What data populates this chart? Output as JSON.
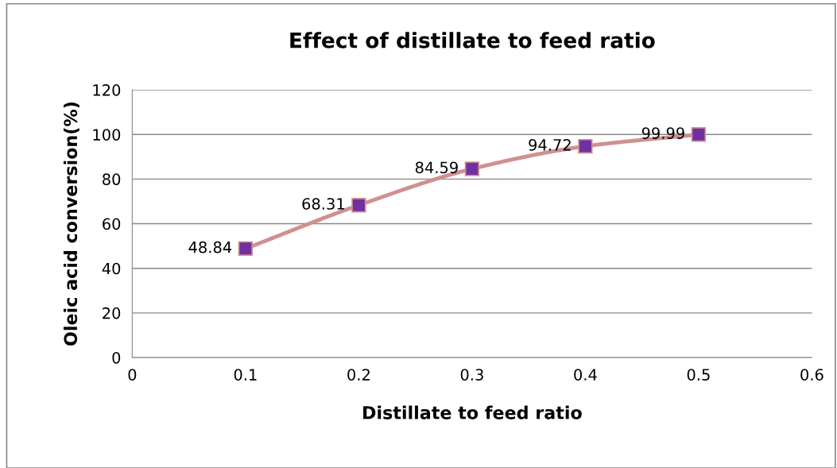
{
  "chart_data": {
    "type": "line",
    "title": "Effect of distillate to feed ratio",
    "xlabel": "Distillate to feed ratio",
    "ylabel": "Oleic acid conversion(%)",
    "x": [
      0.1,
      0.2,
      0.3,
      0.4,
      0.5
    ],
    "series": [
      {
        "color": "#d09090",
        "colors": [
          "#7030a0",
          "#7030a0",
          "#7030a0",
          "#7030a0",
          "#7030a0"
        ],
        "values": [
          48.84,
          68.31,
          84.59,
          94.72,
          99.99
        ]
      }
    ],
    "xlim": [
      0,
      0.6
    ],
    "xticks": [
      0,
      0.1,
      0.2,
      0.3,
      0.4,
      0.5,
      0.6
    ],
    "ylim": [
      0,
      120
    ],
    "yticks": [
      0,
      20,
      40,
      60,
      80,
      100,
      120
    ],
    "grid": "y",
    "marker": "square",
    "line_style": "solid",
    "data_labels": true
  }
}
